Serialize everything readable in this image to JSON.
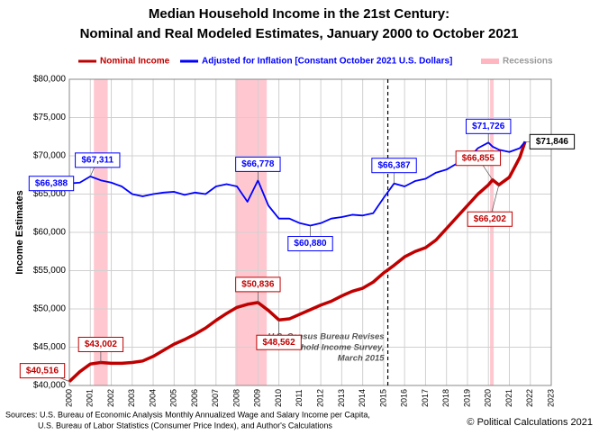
{
  "chart_data": {
    "type": "line",
    "title": [
      "Median Household Income in the 21st Century:",
      "Nominal and Real Modeled Estimates, January 2000 to October 2021"
    ],
    "y_label": "Income Estimates",
    "x": [
      2000,
      2000.5,
      2001,
      2001.5,
      2002,
      2002.5,
      2003,
      2003.5,
      2004,
      2004.5,
      2005,
      2005.5,
      2006,
      2006.5,
      2007,
      2007.5,
      2008,
      2008.5,
      2009,
      2009.5,
      2010,
      2010.5,
      2011,
      2011.5,
      2012,
      2012.5,
      2013,
      2013.5,
      2014,
      2014.5,
      2015,
      2015.5,
      2016,
      2016.5,
      2017,
      2017.5,
      2018,
      2018.5,
      2019,
      2019.5,
      2020,
      2020.2,
      2020.5,
      2021,
      2021.5,
      2021.75
    ],
    "series": [
      {
        "name": "Nominal Income",
        "color": "#c00000",
        "values": [
          40516,
          41800,
          42800,
          43002,
          42900,
          42900,
          43000,
          43200,
          43800,
          44600,
          45400,
          46000,
          46700,
          47500,
          48500,
          49400,
          50200,
          50600,
          50836,
          49800,
          48562,
          48700,
          49300,
          49900,
          50500,
          51000,
          51700,
          52300,
          52700,
          53500,
          54700,
          55700,
          56800,
          57500,
          58000,
          59000,
          60500,
          62000,
          63500,
          65000,
          66200,
          66855,
          66202,
          67200,
          69800,
          71846
        ],
        "value_labels": [
          "$40,516",
          null,
          null,
          "$43,002",
          null,
          null,
          null,
          null,
          null,
          null,
          null,
          null,
          null,
          null,
          null,
          null,
          null,
          null,
          "$50,836",
          null,
          "$48,562",
          null,
          null,
          null,
          null,
          null,
          null,
          null,
          null,
          null,
          null,
          null,
          null,
          null,
          null,
          null,
          null,
          null,
          null,
          null,
          null,
          "$66,855",
          "$66,202",
          null,
          null,
          null
        ]
      },
      {
        "name": "Adjusted for Inflation [Constant October 2021 U.S. Dollars]",
        "color": "#0000ff",
        "values": [
          66388,
          66500,
          67311,
          66800,
          66500,
          66000,
          65000,
          64700,
          65000,
          65200,
          65300,
          64900,
          65200,
          65000,
          66000,
          66300,
          66000,
          64000,
          66778,
          63500,
          61800,
          61800,
          61200,
          60880,
          61200,
          61800,
          62000,
          62300,
          62200,
          62500,
          64500,
          66387,
          66000,
          66700,
          67000,
          67800,
          68200,
          69000,
          69500,
          71000,
          71726,
          71200,
          70800,
          70500,
          71000,
          71846
        ],
        "value_labels": [
          "$66,388",
          null,
          "$67,311",
          null,
          null,
          null,
          null,
          null,
          null,
          null,
          null,
          null,
          null,
          null,
          null,
          null,
          null,
          null,
          "$66,778",
          null,
          null,
          null,
          null,
          "$60,880",
          null,
          null,
          null,
          null,
          null,
          null,
          null,
          "$66,387",
          null,
          null,
          null,
          null,
          null,
          null,
          null,
          null,
          "$71,726",
          null,
          null,
          null,
          null,
          "$71,846"
        ]
      }
    ],
    "recession_label": "Recessions",
    "recession_color": "#ffb6c1",
    "recessions": [
      [
        2001.17,
        2001.83
      ],
      [
        2007.92,
        2009.42
      ],
      [
        2020.08,
        2020.25
      ]
    ],
    "divider_x": 2015.2,
    "divider_note": [
      "U.S. Census Bureau Revises",
      "Household Income Survey,",
      "March 2015"
    ],
    "xlim": [
      2000,
      2023
    ],
    "ylim": [
      40000,
      80000
    ],
    "xticks": [
      2000,
      2001,
      2002,
      2003,
      2004,
      2005,
      2006,
      2007,
      2008,
      2009,
      2010,
      2011,
      2012,
      2013,
      2014,
      2015,
      2016,
      2017,
      2018,
      2019,
      2020,
      2021,
      2022,
      2023
    ],
    "yticks": [
      {
        "value": 40000,
        "label": "$40,000"
      },
      {
        "value": 45000,
        "label": "$45,000"
      },
      {
        "value": 50000,
        "label": "$50,000"
      },
      {
        "value": 55000,
        "label": "$55,000"
      },
      {
        "value": 60000,
        "label": "$60,000"
      },
      {
        "value": 65000,
        "label": "$65,000"
      },
      {
        "value": 70000,
        "label": "$70,000"
      },
      {
        "value": 75000,
        "label": "$75,000"
      },
      {
        "value": 80000,
        "label": "$80,000"
      }
    ],
    "grid": true,
    "sources": [
      "Sources: U.S. Bureau of Economic Analysis Monthly Annualized Wage and Salary Income per Capita,",
      "U.S. Bureau of Labor Statistics (Consumer  Price Index), and Author's Calculations"
    ],
    "credit": "© Political Calculations 2021"
  }
}
